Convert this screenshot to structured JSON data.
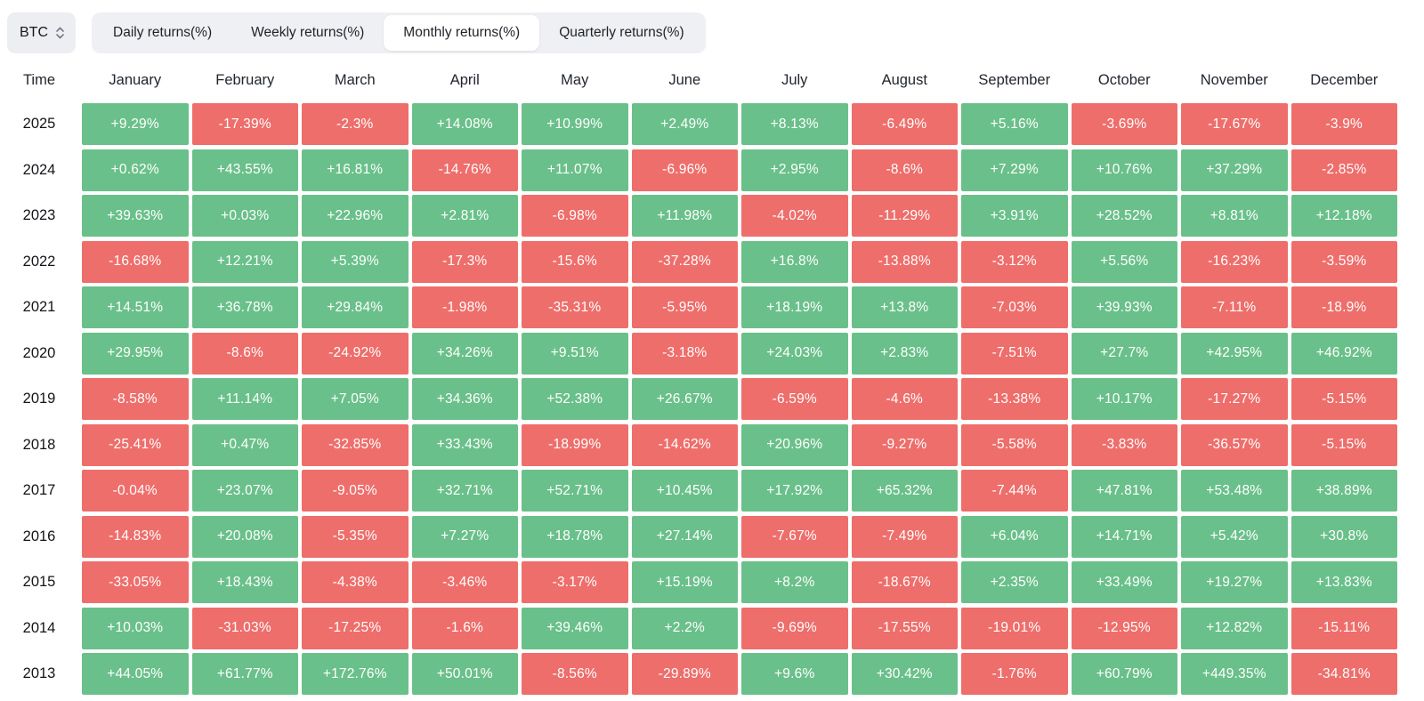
{
  "asset_selector": {
    "value": "BTC"
  },
  "tabs": {
    "items": [
      {
        "label": "Daily returns(%)",
        "active": false
      },
      {
        "label": "Weekly returns(%)",
        "active": false
      },
      {
        "label": "Monthly returns(%)",
        "active": true
      },
      {
        "label": "Quarterly returns(%)",
        "active": false
      }
    ]
  },
  "table": {
    "time_header": "Time",
    "months": [
      "January",
      "February",
      "March",
      "April",
      "May",
      "June",
      "July",
      "August",
      "September",
      "October",
      "November",
      "December"
    ],
    "rows": [
      {
        "year": "2025",
        "values": [
          "+9.29%",
          "-17.39%",
          "-2.3%",
          "+14.08%",
          "+10.99%",
          "+2.49%",
          "+8.13%",
          "-6.49%",
          "+5.16%",
          "-3.69%",
          "-17.67%",
          "-3.9%"
        ]
      },
      {
        "year": "2024",
        "values": [
          "+0.62%",
          "+43.55%",
          "+16.81%",
          "-14.76%",
          "+11.07%",
          "-6.96%",
          "+2.95%",
          "-8.6%",
          "+7.29%",
          "+10.76%",
          "+37.29%",
          "-2.85%"
        ]
      },
      {
        "year": "2023",
        "values": [
          "+39.63%",
          "+0.03%",
          "+22.96%",
          "+2.81%",
          "-6.98%",
          "+11.98%",
          "-4.02%",
          "-11.29%",
          "+3.91%",
          "+28.52%",
          "+8.81%",
          "+12.18%"
        ]
      },
      {
        "year": "2022",
        "values": [
          "-16.68%",
          "+12.21%",
          "+5.39%",
          "-17.3%",
          "-15.6%",
          "-37.28%",
          "+16.8%",
          "-13.88%",
          "-3.12%",
          "+5.56%",
          "-16.23%",
          "-3.59%"
        ]
      },
      {
        "year": "2021",
        "values": [
          "+14.51%",
          "+36.78%",
          "+29.84%",
          "-1.98%",
          "-35.31%",
          "-5.95%",
          "+18.19%",
          "+13.8%",
          "-7.03%",
          "+39.93%",
          "-7.11%",
          "-18.9%"
        ]
      },
      {
        "year": "2020",
        "values": [
          "+29.95%",
          "-8.6%",
          "-24.92%",
          "+34.26%",
          "+9.51%",
          "-3.18%",
          "+24.03%",
          "+2.83%",
          "-7.51%",
          "+27.7%",
          "+42.95%",
          "+46.92%"
        ]
      },
      {
        "year": "2019",
        "values": [
          "-8.58%",
          "+11.14%",
          "+7.05%",
          "+34.36%",
          "+52.38%",
          "+26.67%",
          "-6.59%",
          "-4.6%",
          "-13.38%",
          "+10.17%",
          "-17.27%",
          "-5.15%"
        ]
      },
      {
        "year": "2018",
        "values": [
          "-25.41%",
          "+0.47%",
          "-32.85%",
          "+33.43%",
          "-18.99%",
          "-14.62%",
          "+20.96%",
          "-9.27%",
          "-5.58%",
          "-3.83%",
          "-36.57%",
          "-5.15%"
        ]
      },
      {
        "year": "2017",
        "values": [
          "-0.04%",
          "+23.07%",
          "-9.05%",
          "+32.71%",
          "+52.71%",
          "+10.45%",
          "+17.92%",
          "+65.32%",
          "-7.44%",
          "+47.81%",
          "+53.48%",
          "+38.89%"
        ]
      },
      {
        "year": "2016",
        "values": [
          "-14.83%",
          "+20.08%",
          "-5.35%",
          "+7.27%",
          "+18.78%",
          "+27.14%",
          "-7.67%",
          "-7.49%",
          "+6.04%",
          "+14.71%",
          "+5.42%",
          "+30.8%"
        ]
      },
      {
        "year": "2015",
        "values": [
          "-33.05%",
          "+18.43%",
          "-4.38%",
          "-3.46%",
          "-3.17%",
          "+15.19%",
          "+8.2%",
          "-18.67%",
          "+2.35%",
          "+33.49%",
          "+19.27%",
          "+13.83%"
        ]
      },
      {
        "year": "2014",
        "values": [
          "+10.03%",
          "-31.03%",
          "-17.25%",
          "-1.6%",
          "+39.46%",
          "+2.2%",
          "-9.69%",
          "-17.55%",
          "-19.01%",
          "-12.95%",
          "+12.82%",
          "-15.11%"
        ]
      },
      {
        "year": "2013",
        "values": [
          "+44.05%",
          "+61.77%",
          "+172.76%",
          "+50.01%",
          "-8.56%",
          "-29.89%",
          "+9.6%",
          "+30.42%",
          "-1.76%",
          "+60.79%",
          "+449.35%",
          "-34.81%"
        ]
      }
    ]
  },
  "colors": {
    "positive": "#6ac08a",
    "negative": "#ee6e6b",
    "tab_background": "#eef0f3",
    "active_tab_background": "#ffffff"
  }
}
